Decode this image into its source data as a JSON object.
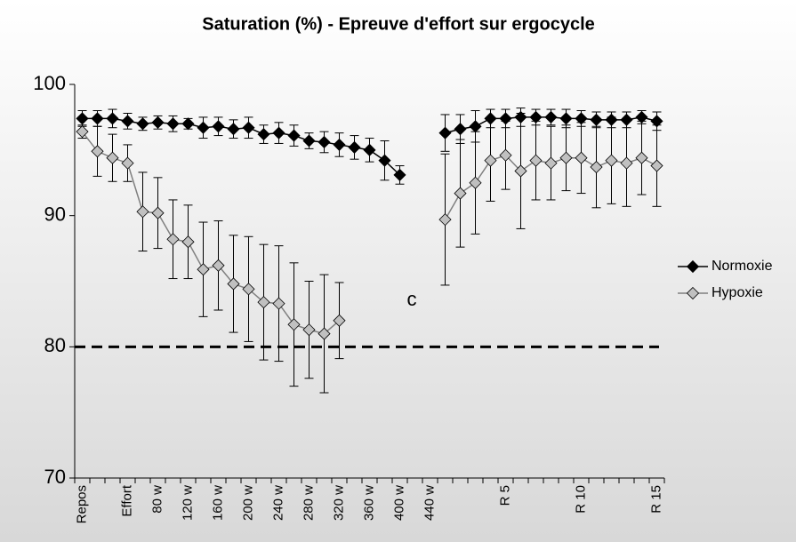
{
  "chart_data": {
    "type": "line",
    "title": "Saturation (%) - Epreuve d'effort sur ergocycle",
    "categories": [
      "Repos",
      null,
      null,
      "Effort",
      null,
      "80 w",
      null,
      "120 w",
      null,
      "160 w",
      null,
      "200 w",
      null,
      "240 w",
      null,
      "280 w",
      null,
      "320 w",
      null,
      "360 w",
      null,
      "400 w",
      null,
      "440 w",
      null,
      null,
      null,
      null,
      "R 5",
      null,
      null,
      null,
      null,
      "R 10",
      null,
      null,
      null,
      null,
      "R 15"
    ],
    "series": [
      {
        "name": "Normoxie",
        "color": "#000000",
        "marker_fill": "#000000",
        "values": [
          97.4,
          97.4,
          97.4,
          97.2,
          97.0,
          97.1,
          97.0,
          97.0,
          96.7,
          96.8,
          96.6,
          96.7,
          96.2,
          96.3,
          96.1,
          95.7,
          95.6,
          95.4,
          95.2,
          95.0,
          94.2,
          93.1,
          null,
          null,
          96.3,
          96.6,
          96.8,
          97.4,
          97.4,
          97.5,
          97.5,
          97.5,
          97.4,
          97.4,
          97.3,
          97.3,
          97.3,
          97.5,
          97.2
        ],
        "errors": [
          0.6,
          0.6,
          0.7,
          0.6,
          0.5,
          0.5,
          0.6,
          0.4,
          0.8,
          0.7,
          0.7,
          0.8,
          0.7,
          0.8,
          0.8,
          0.6,
          0.8,
          0.9,
          0.9,
          0.9,
          1.5,
          0.7,
          null,
          null,
          1.4,
          1.1,
          1.2,
          0.7,
          0.7,
          0.7,
          0.6,
          0.6,
          0.7,
          0.6,
          0.6,
          0.6,
          0.6,
          0.5,
          0.7
        ]
      },
      {
        "name": "Hypoxie",
        "color": "#808080",
        "marker_fill": "#c0c0c0",
        "values": [
          96.4,
          94.9,
          94.4,
          94.0,
          90.3,
          90.2,
          88.2,
          88.0,
          85.9,
          86.2,
          84.8,
          84.4,
          83.4,
          83.3,
          81.7,
          81.3,
          81.0,
          82.0,
          null,
          null,
          null,
          null,
          null,
          null,
          89.7,
          91.7,
          92.5,
          94.2,
          94.6,
          93.4,
          94.2,
          94.0,
          94.4,
          94.4,
          93.7,
          94.2,
          94.0,
          94.4,
          93.8
        ],
        "errors": [
          0.5,
          1.9,
          1.8,
          1.4,
          3.0,
          2.7,
          3.0,
          2.8,
          3.6,
          3.4,
          3.7,
          4.0,
          4.4,
          4.4,
          4.7,
          3.7,
          4.5,
          2.9,
          null,
          null,
          null,
          null,
          null,
          null,
          5.0,
          4.1,
          3.9,
          3.1,
          2.6,
          4.4,
          3.0,
          2.8,
          2.5,
          2.7,
          3.1,
          3.3,
          3.3,
          2.8,
          3.1
        ]
      }
    ],
    "ylim": [
      70,
      100
    ],
    "yticks": [
      70,
      80,
      90,
      100
    ],
    "reference_line": 80,
    "annotation": "c",
    "legend": "right"
  }
}
